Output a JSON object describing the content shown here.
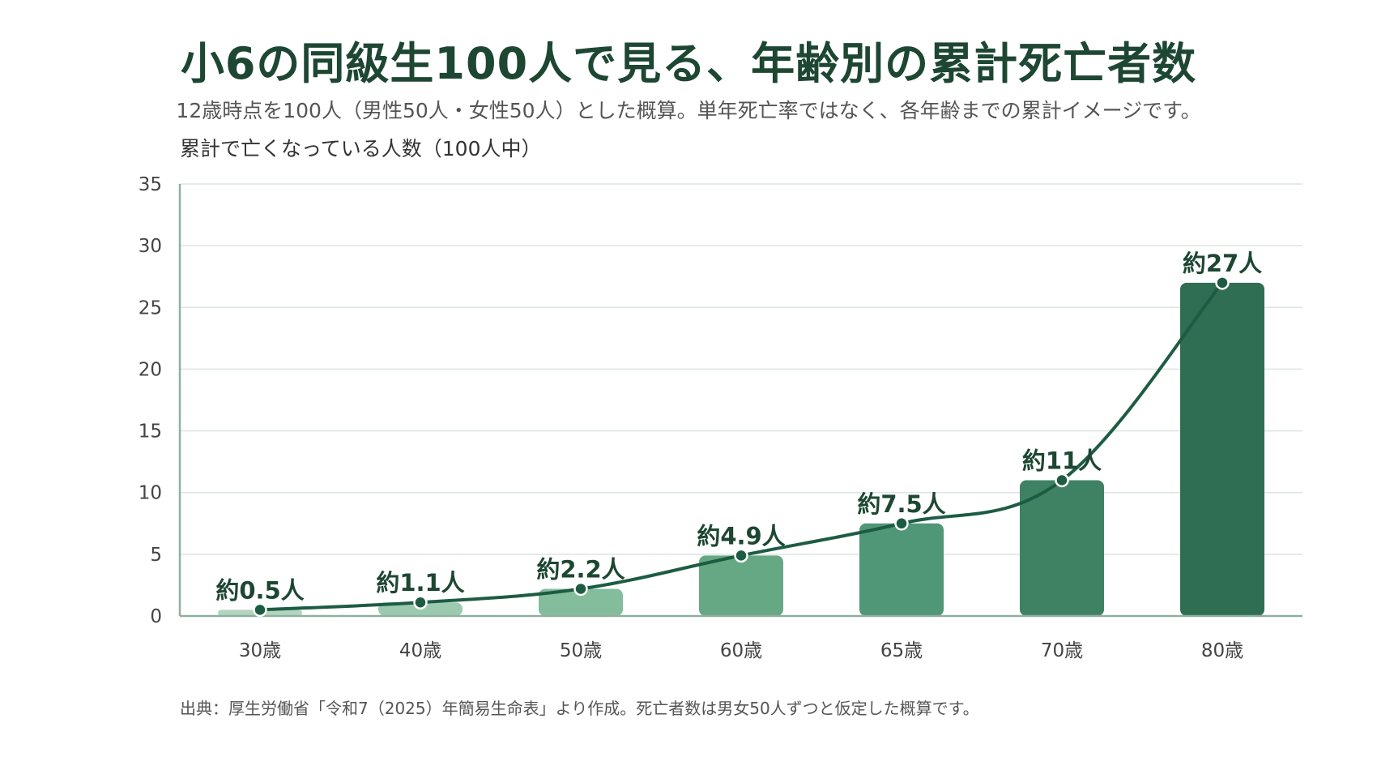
{
  "header": {
    "title": "小6の同級生100人で見る、年齢別の累計死亡者数",
    "subtitle": "12歳時点を100人（男性50人・女性50人）とした概算。単年死亡率ではなく、各年齢までの累計イメージです。"
  },
  "footer": {
    "source": "出典：厚生労働省「令和7（2025）年簡易生命表」より作成。死亡者数は男女50人ずつと仮定した概算です。"
  },
  "chart_data": {
    "type": "bar",
    "title": "小6の同級生100人で見る、年齢別の累計死亡者数",
    "subtitle": "12歳時点を100人（男性50人・女性50人）とした概算。単年死亡率ではなく、各年齢までの累計イメージです。",
    "ylabel": "累計で亡くなっている人数（100人中）",
    "xlabel": "",
    "categories": [
      "30歳",
      "40歳",
      "50歳",
      "60歳",
      "65歳",
      "70歳",
      "80歳"
    ],
    "values": [
      0.5,
      1.1,
      2.2,
      4.9,
      7.5,
      11,
      27
    ],
    "data_labels": [
      "約0.5人",
      "約1.1人",
      "約2.2人",
      "約4.9人",
      "約7.5人",
      "約11人",
      "約27人"
    ],
    "ylim": [
      0,
      35
    ],
    "yticks": [
      0,
      5,
      10,
      15,
      20,
      25,
      30,
      35
    ],
    "grid": true,
    "overlay_line": true,
    "colors": {
      "bars": [
        "#b3d4bf",
        "#9ccab0",
        "#84bd9c",
        "#66a883",
        "#4f9776",
        "#3e8263",
        "#2f6e52"
      ],
      "line": "#1d5c43",
      "marker_fill": "#1d5c43",
      "marker_stroke": "#ffffff",
      "grid": "#dde5e0",
      "axis": "#8fb0a0",
      "title": "#1d4732"
    }
  }
}
